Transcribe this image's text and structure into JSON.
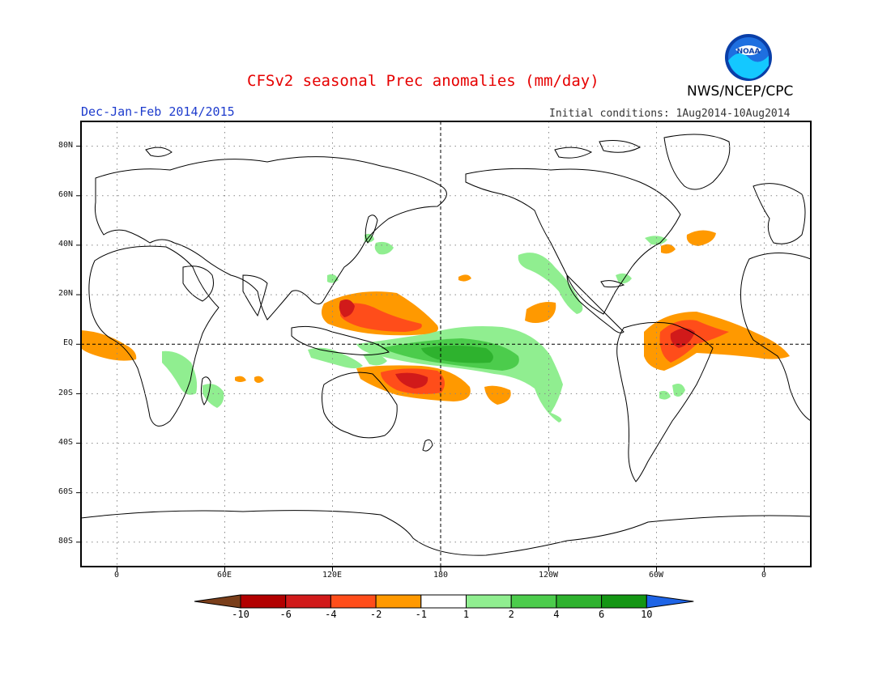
{
  "header": {
    "title": "CFSv2 seasonal Prec anomalies (mm/day)",
    "agency": "NWS/NCEP/CPC",
    "logo_text": "NOAA",
    "season": "Dec-Jan-Feb 2014/2015",
    "initial_conditions": "Initial conditions: 1Aug2014-10Aug2014"
  },
  "map": {
    "projection": "equirectangular",
    "lon_range": [
      -20,
      340
    ],
    "lat_range": [
      -90,
      90
    ],
    "lat_labels": [
      "80N",
      "60N",
      "40N",
      "20N",
      "EQ",
      "20S",
      "40S",
      "60S",
      "80S"
    ],
    "lon_labels": [
      "0",
      "60E",
      "120E",
      "180",
      "120W",
      "60W",
      "0"
    ],
    "reference_lines": [
      "equator",
      "dateline"
    ],
    "grid": true
  },
  "colorbar": {
    "labels": [
      "-10",
      "-6",
      "-4",
      "-2",
      "-1",
      "1",
      "2",
      "4",
      "6",
      "10"
    ],
    "colors": [
      "#7a3e1a",
      "#b20000",
      "#d11a1a",
      "#ff4d1a",
      "#ff9900",
      "#ffffff",
      "#90ee90",
      "#4ccc4c",
      "#2eb22e",
      "#149614",
      "#1e64e6"
    ]
  }
}
